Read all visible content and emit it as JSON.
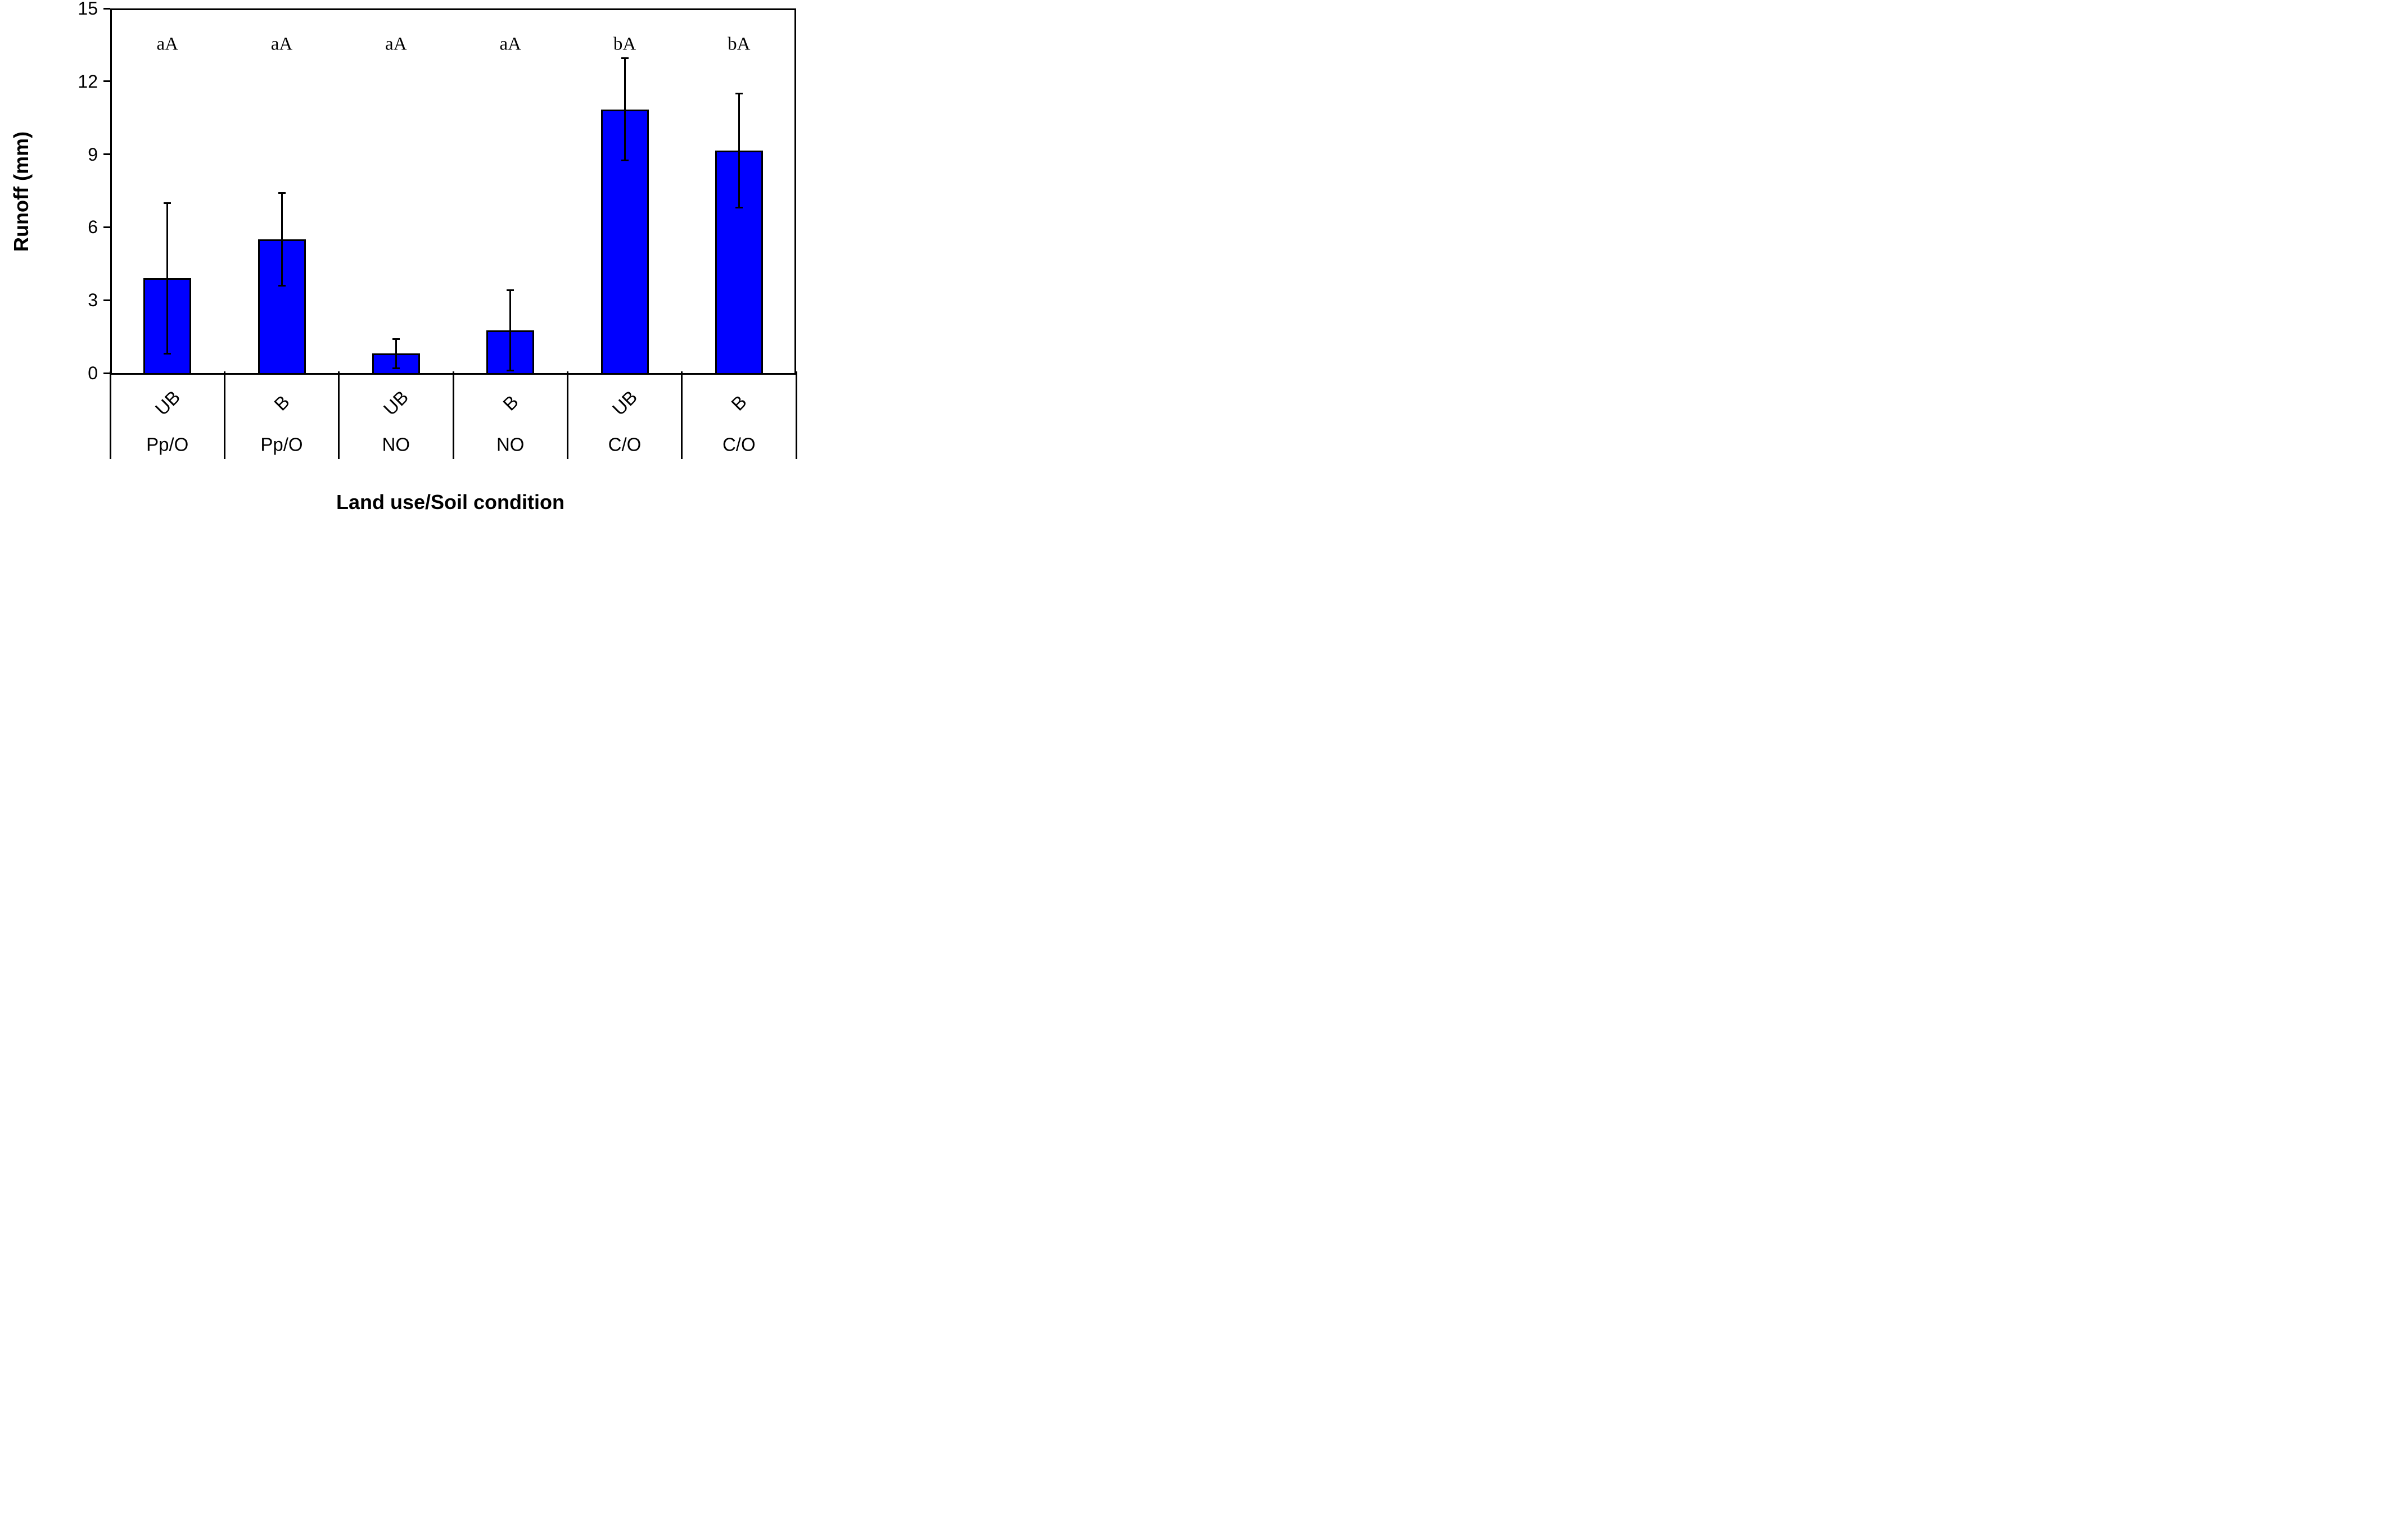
{
  "chart_data": {
    "type": "bar",
    "title": "",
    "ylabel": "Runoff (mm)",
    "xlabel": "Land use/Soil condition",
    "ylim": [
      0,
      15
    ],
    "yticks": [
      0,
      3,
      6,
      9,
      12,
      15
    ],
    "grid": false,
    "legend": "none",
    "bar_color": "#0000ff",
    "bar_edge_color": "#000000",
    "axis_color": "#000000",
    "categories": [
      {
        "soil": "UB",
        "land_use": "Pp/O",
        "value": 3.9,
        "error": 3.1,
        "letter": "aA"
      },
      {
        "soil": "B",
        "land_use": "Pp/O",
        "value": 5.5,
        "error": 1.9,
        "letter": "aA"
      },
      {
        "soil": "UB",
        "land_use": "NO",
        "value": 0.8,
        "error": 0.6,
        "letter": "aA"
      },
      {
        "soil": "B",
        "land_use": "NO",
        "value": 1.75,
        "error": 1.65,
        "letter": "aA"
      },
      {
        "soil": "UB",
        "land_use": "C/O",
        "value": 10.85,
        "error": 2.1,
        "letter": "bA"
      },
      {
        "soil": "B",
        "land_use": "C/O",
        "value": 9.15,
        "error": 2.35,
        "letter": "bA"
      }
    ]
  }
}
